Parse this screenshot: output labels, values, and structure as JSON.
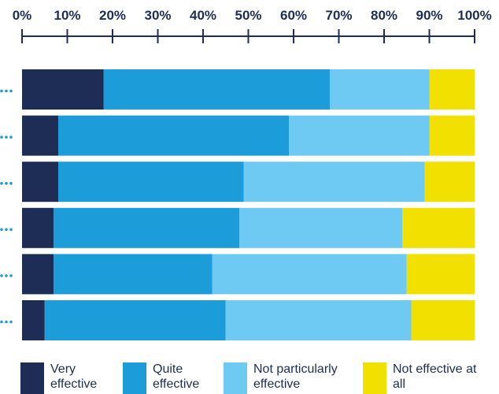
{
  "chart_data": {
    "type": "bar",
    "orientation": "horizontal",
    "stacked": true,
    "title": "",
    "xlabel": "",
    "ylabel": "",
    "xlim": [
      0,
      100
    ],
    "x_ticks": [
      "0%",
      "10%",
      "20%",
      "30%",
      "40%",
      "50%",
      "60%",
      "70%",
      "80%",
      "90%",
      "100%"
    ],
    "categories": [
      "",
      "",
      "",
      "",
      "",
      ""
    ],
    "series": [
      {
        "name": "Very effective",
        "color": "#1d2d55",
        "values": [
          18,
          8,
          8,
          7,
          7,
          5
        ]
      },
      {
        "name": "Quite effective",
        "color": "#1c9cd8",
        "values": [
          50,
          51,
          41,
          41,
          35,
          40
        ]
      },
      {
        "name": "Not particularly effective",
        "color": "#6ec9f3",
        "values": [
          22,
          31,
          40,
          36,
          43,
          41
        ]
      },
      {
        "name": "Not effective at all",
        "color": "#f2e000",
        "values": [
          10,
          10,
          11,
          16,
          15,
          14
        ]
      }
    ],
    "legend_position": "bottom",
    "grid": false
  }
}
